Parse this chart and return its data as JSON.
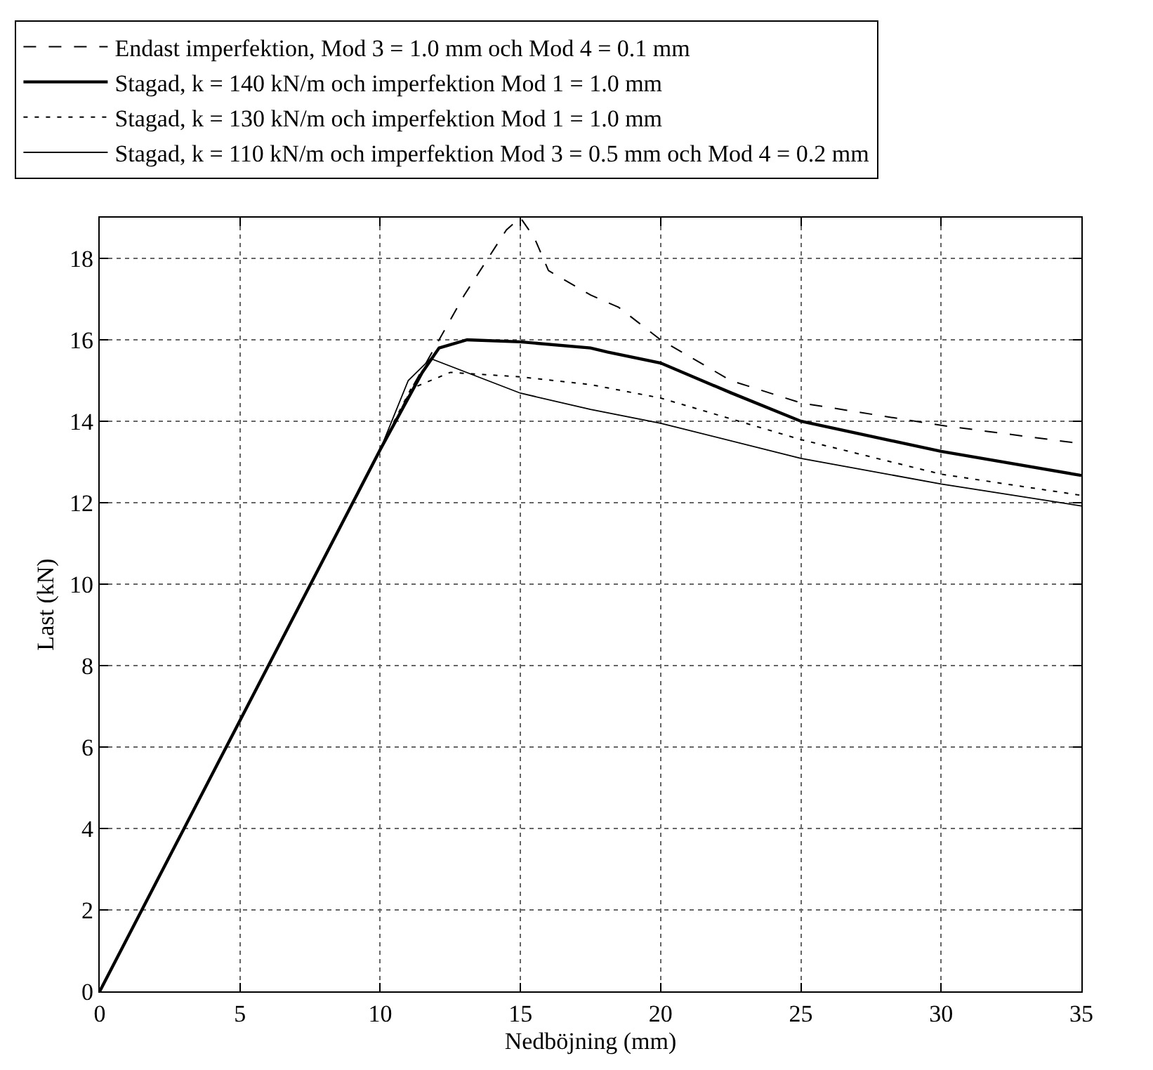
{
  "chart_data": {
    "type": "line",
    "xlabel": "Nedböjning (mm)",
    "ylabel": "Last (kN)",
    "xlim": [
      0,
      35
    ],
    "ylim": [
      0,
      19
    ],
    "xticks": [
      0,
      5,
      10,
      15,
      20,
      25,
      30,
      35
    ],
    "yticks": [
      0,
      2,
      4,
      6,
      8,
      10,
      12,
      14,
      16,
      18
    ],
    "grid": true,
    "legend": "top",
    "marker": "none",
    "series": [
      {
        "name": "Endast imperfektion, Mod 3 = 1.0 mm och Mod 4 = 0.1 mm",
        "color": "#000000",
        "line_style": "dashed",
        "x": [
          0,
          10,
          11.2,
          13,
          14.5,
          15,
          15.5,
          16,
          17.5,
          18.5,
          20,
          22.5,
          25,
          30,
          35
        ],
        "values": [
          0,
          13.3,
          14.9,
          17.1,
          18.7,
          19,
          18.5,
          17.7,
          17.1,
          16.8,
          16.0,
          15.0,
          14.45,
          13.9,
          13.45
        ]
      },
      {
        "name": "Stagad, k = 140 kN/m och imperfektion Mod 1 = 1.0 mm",
        "color": "#000000",
        "line_style": "solid",
        "x": [
          0,
          10,
          11.5,
          12.1,
          13.1,
          15,
          17.5,
          18.1,
          20,
          22.5,
          25,
          30,
          35
        ],
        "values": [
          0,
          13.3,
          15.2,
          15.8,
          16.0,
          15.95,
          15.8,
          15.7,
          15.43,
          14.7,
          14.0,
          13.26,
          12.67
        ]
      },
      {
        "name": "Stagad, k = 130 kN/m och imperfektion Mod 1 = 1.0 mm",
        "color": "#000000",
        "line_style": "dotted",
        "x": [
          0,
          10,
          10.5,
          11.1,
          12.5,
          15,
          17.5,
          20,
          25,
          30,
          35
        ],
        "values": [
          0,
          13.3,
          14.0,
          14.8,
          15.2,
          15.09,
          14.9,
          14.57,
          13.55,
          12.7,
          12.18
        ]
      },
      {
        "name": "Stagad, k = 110 kN/m och imperfektion Mod 3 = 0.5 mm och Mod 4 = 0.2 mm",
        "color": "#000000",
        "line_style": "solid",
        "x": [
          0,
          10,
          11,
          11.8,
          15,
          17.5,
          20,
          25,
          30,
          35
        ],
        "values": [
          0,
          13.3,
          15.0,
          15.54,
          14.69,
          14.29,
          13.95,
          13.09,
          12.46,
          11.92
        ]
      }
    ]
  }
}
